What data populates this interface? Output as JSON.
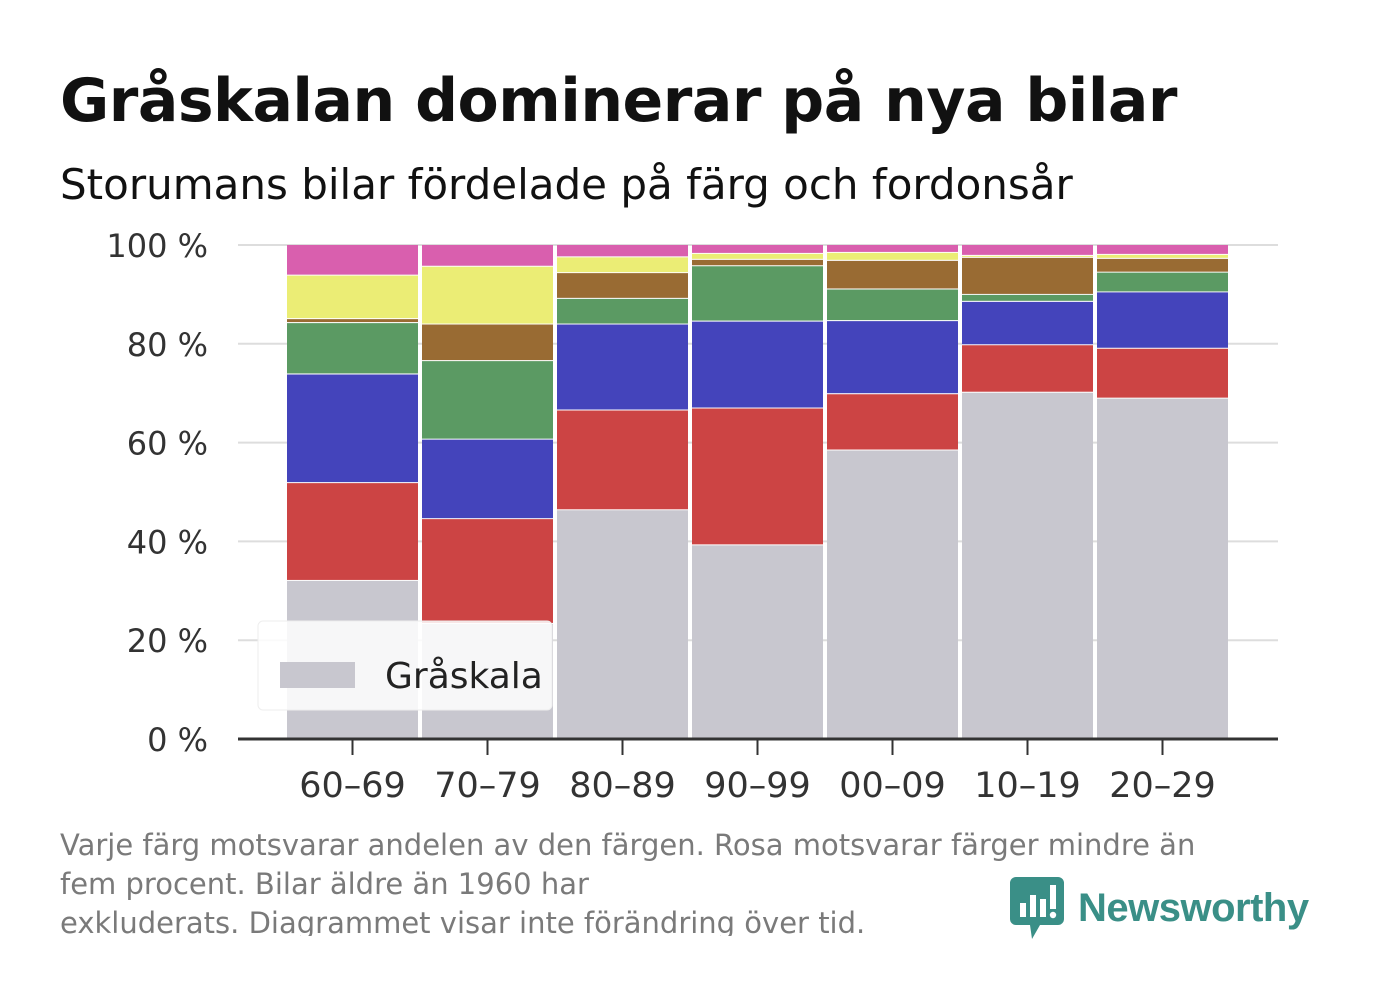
{
  "header": {
    "title": "Gråskalan dominerar på nya bilar",
    "subtitle": "Storumans bilar fördelade på färg och fordonsår"
  },
  "footnote": {
    "line1": "Varje färg motsvarar andelen av den färgen. Rosa motsvarar färger mindre än",
    "line2": "fem procent. Bilar äldre än 1960 har",
    "line3": "exkluderats. Diagrammet visar inte förändring över tid."
  },
  "brand": {
    "name": "Newsworthy",
    "color": "#3a8f87",
    "icon": "newsworthy-logo-icon"
  },
  "chart_data": {
    "type": "bar",
    "stacked": true,
    "categories": [
      "60–69",
      "70–79",
      "80–89",
      "90–99",
      "00–09",
      "10–19",
      "20–29"
    ],
    "ylim": [
      0,
      100
    ],
    "yticks": [
      0,
      20,
      40,
      60,
      80,
      100
    ],
    "ytick_labels": [
      "0 %",
      "20 %",
      "40 %",
      "60 %",
      "80 %",
      "100 %"
    ],
    "grid": true,
    "legend": {
      "placement": "bottom-left",
      "entries": [
        "Gråskala"
      ]
    },
    "series": [
      {
        "name": "Gråskala",
        "color": "#c8c7cf",
        "values": [
          32.2,
          23.5,
          46.5,
          39.4,
          58.6,
          70.3,
          69.1
        ]
      },
      {
        "color": "#cc4444",
        "values": [
          19.8,
          21.2,
          20.2,
          27.7,
          11.4,
          9.6,
          10.1
        ]
      },
      {
        "color": "#4444bb",
        "values": [
          22.0,
          16.1,
          17.4,
          17.6,
          14.8,
          8.8,
          11.4
        ]
      },
      {
        "color": "#5b9a63",
        "values": [
          10.4,
          15.9,
          5.2,
          11.2,
          6.4,
          1.4,
          4.0
        ]
      },
      {
        "color": "#996b33",
        "values": [
          0.8,
          7.4,
          5.2,
          1.3,
          5.8,
          7.5,
          2.8
        ]
      },
      {
        "color": "#ebed75",
        "values": [
          8.8,
          11.7,
          3.2,
          1.2,
          1.6,
          0.4,
          0.8
        ]
      },
      {
        "color": "#d95fae",
        "values": [
          6.0,
          4.2,
          2.3,
          1.6,
          1.4,
          2.0,
          1.8
        ]
      }
    ]
  }
}
